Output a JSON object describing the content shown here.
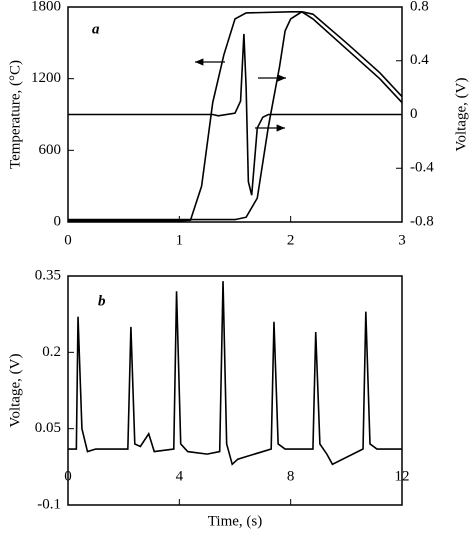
{
  "chart_data": [
    {
      "type": "line",
      "title": "a",
      "y_label": "Temperature, (°C)",
      "y2_label": "Voltage, (V)",
      "xlim": [
        0,
        3
      ],
      "xticks": [
        0,
        1,
        2,
        3
      ],
      "ylim": [
        0,
        1800
      ],
      "yticks": [
        0,
        600,
        1200,
        1800
      ],
      "y2lim": [
        -0.8,
        0.8
      ],
      "y2ticks": [
        -0.8,
        -0.4,
        0,
        0.4,
        0.8
      ],
      "series": [
        {
          "color": "#000000",
          "x": [
            0,
            1.0,
            1.1,
            1.2,
            1.3,
            1.4,
            1.5,
            1.6,
            2.0,
            2.1,
            2.2,
            2.5,
            2.8,
            3.0
          ],
          "values": [
            10,
            10,
            15,
            300,
            1000,
            1400,
            1700,
            1750,
            1760,
            1760,
            1700,
            1450,
            1200,
            1000
          ]
        },
        {
          "color": "#000000",
          "x": [
            0,
            1.5,
            1.6,
            1.7,
            1.8,
            1.9,
            1.95,
            2.0,
            2.1,
            2.2,
            2.5,
            2.8,
            3.0
          ],
          "values": [
            20,
            20,
            40,
            200,
            800,
            1300,
            1600,
            1700,
            1760,
            1740,
            1500,
            1250,
            1050
          ]
        },
        {
          "color": "#000000",
          "axis": "y2",
          "x": [
            0,
            1.3,
            1.35,
            1.5,
            1.55,
            1.58,
            1.6,
            1.62,
            1.65,
            1.7,
            1.75,
            1.8,
            3.0
          ],
          "values": [
            0,
            0,
            -0.01,
            0.01,
            0.1,
            0.6,
            0.2,
            -0.5,
            -0.6,
            -0.1,
            -0.02,
            0,
            0
          ]
        }
      ]
    },
    {
      "type": "line",
      "title": "b",
      "y_label": "Voltage, (V)",
      "x_label": "Time, (s)",
      "xlim": [
        0,
        12
      ],
      "xticks": [
        0,
        4,
        8,
        12
      ],
      "ylim": [
        -0.1,
        0.35
      ],
      "yticks": [
        -0.1,
        0.05,
        0.2,
        0.35
      ],
      "series": [
        {
          "color": "#000000",
          "x": [
            0,
            0.3,
            0.36,
            0.5,
            0.7,
            1,
            2.15,
            2.26,
            2.4,
            2.6,
            2.9,
            3.1,
            3.8,
            3.9,
            4.05,
            4.3,
            5,
            5.45,
            5.57,
            5.7,
            5.9,
            6.1,
            6.4,
            7,
            7.3,
            7.4,
            7.55,
            7.8,
            8.8,
            8.9,
            9.05,
            9.3,
            9.5,
            10.6,
            10.7,
            10.85,
            11.1,
            12
          ],
          "values": [
            0.01,
            0.01,
            0.27,
            0.05,
            0.005,
            0.01,
            0.01,
            0.25,
            0.02,
            0.015,
            0.04,
            0.005,
            0.01,
            0.32,
            0.02,
            0.005,
            0.0,
            0.005,
            0.34,
            0.02,
            -0.02,
            -0.01,
            -0.005,
            0.005,
            0.01,
            0.26,
            0.02,
            0.01,
            0.01,
            0.24,
            0.02,
            0.0,
            -0.02,
            0.01,
            0.28,
            0.02,
            0.01,
            0.01
          ]
        }
      ]
    }
  ]
}
